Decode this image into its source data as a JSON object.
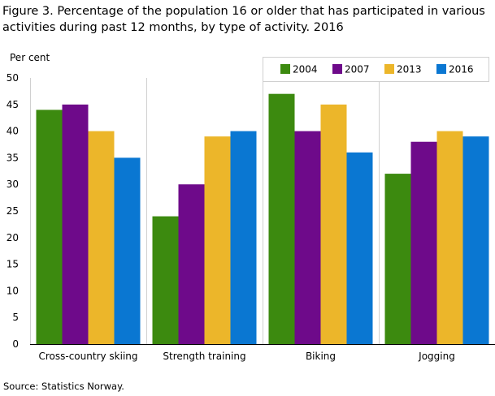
{
  "figure": {
    "title": "Figure 3. Percentage of the population 16 or older that has participated in various activities during past 12 months, by type of activity. 2016",
    "source": "Source: Statistics Norway."
  },
  "chart_data": {
    "type": "bar",
    "title": "Figure 3. Percentage of the population 16 or older that has participated in various activities during past 12 months, by type of activity. 2016",
    "xlabel": "",
    "ylabel": "Per cent",
    "ylim": [
      0,
      50
    ],
    "yticks": [
      0,
      5,
      10,
      15,
      20,
      25,
      30,
      35,
      40,
      45,
      50
    ],
    "grid": "vertical category separators",
    "legend": "top-right",
    "categories": [
      "Cross-country skiing",
      "Strength training",
      "Biking",
      "Jogging"
    ],
    "series": [
      {
        "name": "2004",
        "color": "#3c8a0f",
        "values": [
          44,
          24,
          47,
          32
        ]
      },
      {
        "name": "2007",
        "color": "#6e0a8a",
        "values": [
          45,
          30,
          40,
          38
        ]
      },
      {
        "name": "2013",
        "color": "#ecb62a",
        "values": [
          40,
          39,
          45,
          40
        ]
      },
      {
        "name": "2016",
        "color": "#0a77d2",
        "values": [
          35,
          40,
          36,
          39
        ]
      }
    ]
  }
}
